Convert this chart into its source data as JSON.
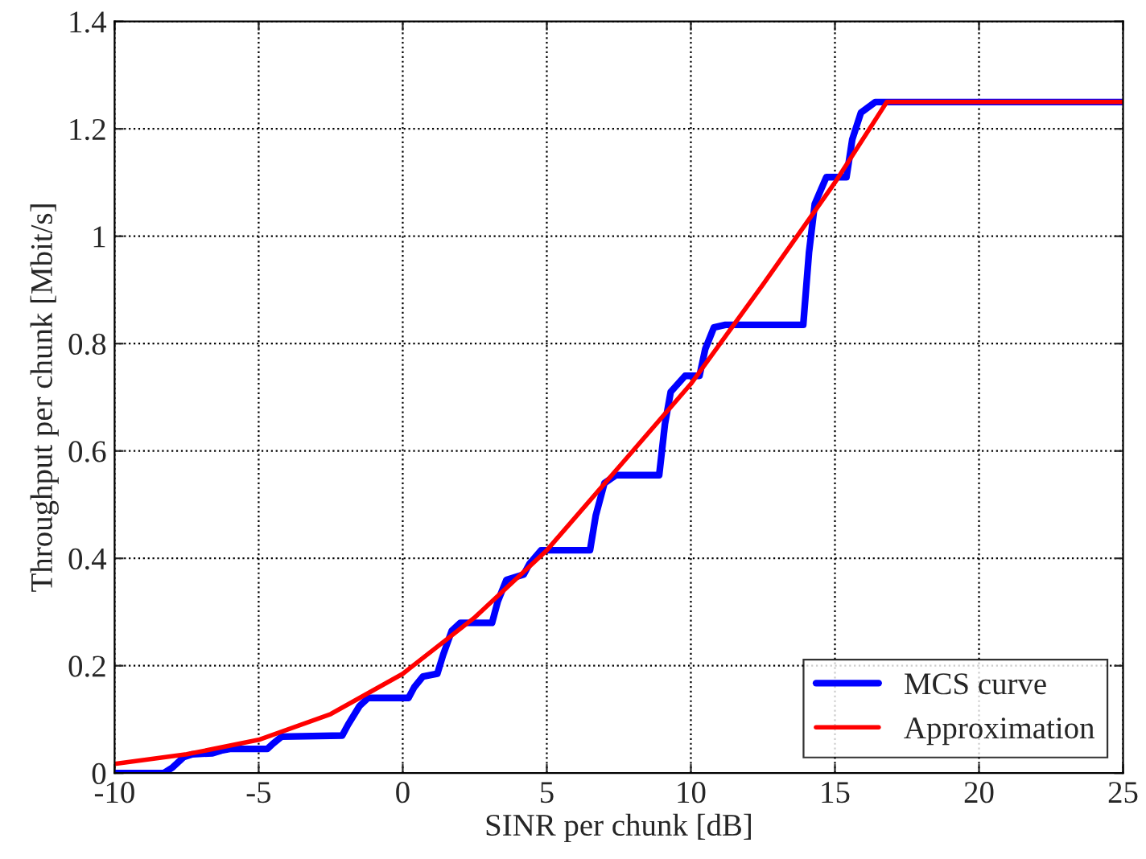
{
  "chart_data": {
    "type": "line",
    "xlabel": "SINR per chunk [dB]",
    "ylabel": "Throughput per chunk [Mbit/s]",
    "xlim": [
      -10,
      25
    ],
    "ylim": [
      0,
      1.4
    ],
    "xticks": [
      -10,
      -5,
      0,
      5,
      10,
      15,
      20,
      25
    ],
    "yticks": [
      0,
      0.2,
      0.4,
      0.6,
      0.8,
      1,
      1.2,
      1.4
    ],
    "grid": true,
    "legend": "bottom right",
    "line_style": "solid",
    "series": [
      {
        "name": "MCS curve",
        "color": "#0000ff",
        "x": [
          -10,
          -8.3,
          -8.0,
          -7.6,
          -7.3,
          -6.6,
          -6.3,
          -6.0,
          -4.7,
          -4.5,
          -4.2,
          -2.1,
          -1.9,
          -1.5,
          -1.2,
          0.2,
          0.4,
          0.7,
          1.2,
          1.4,
          1.7,
          2.0,
          3.1,
          3.3,
          3.6,
          4.2,
          4.4,
          4.8,
          6.5,
          6.7,
          7.0,
          7.4,
          8.9,
          9.1,
          9.3,
          9.8,
          10.3,
          10.5,
          10.8,
          11.2,
          13.9,
          14.1,
          14.3,
          14.7,
          15.4,
          15.6,
          15.9,
          16.4,
          25
        ],
        "values": [
          0,
          0,
          0.01,
          0.03,
          0.035,
          0.037,
          0.042,
          0.045,
          0.045,
          0.055,
          0.068,
          0.07,
          0.09,
          0.125,
          0.14,
          0.14,
          0.16,
          0.18,
          0.185,
          0.22,
          0.265,
          0.28,
          0.28,
          0.32,
          0.36,
          0.37,
          0.39,
          0.415,
          0.415,
          0.48,
          0.54,
          0.555,
          0.555,
          0.65,
          0.71,
          0.74,
          0.74,
          0.79,
          0.83,
          0.835,
          0.835,
          0.97,
          1.06,
          1.11,
          1.11,
          1.18,
          1.23,
          1.25,
          1.25
        ]
      },
      {
        "name": "Approximation",
        "color": "#ff0000",
        "x": [
          -10,
          -7.5,
          -5,
          -2.5,
          0,
          2.5,
          5,
          7.5,
          10,
          12.5,
          15,
          16.8,
          25
        ],
        "values": [
          0.017,
          0.035,
          0.062,
          0.11,
          0.185,
          0.29,
          0.415,
          0.57,
          0.725,
          0.91,
          1.1,
          1.25,
          1.25
        ]
      }
    ]
  }
}
